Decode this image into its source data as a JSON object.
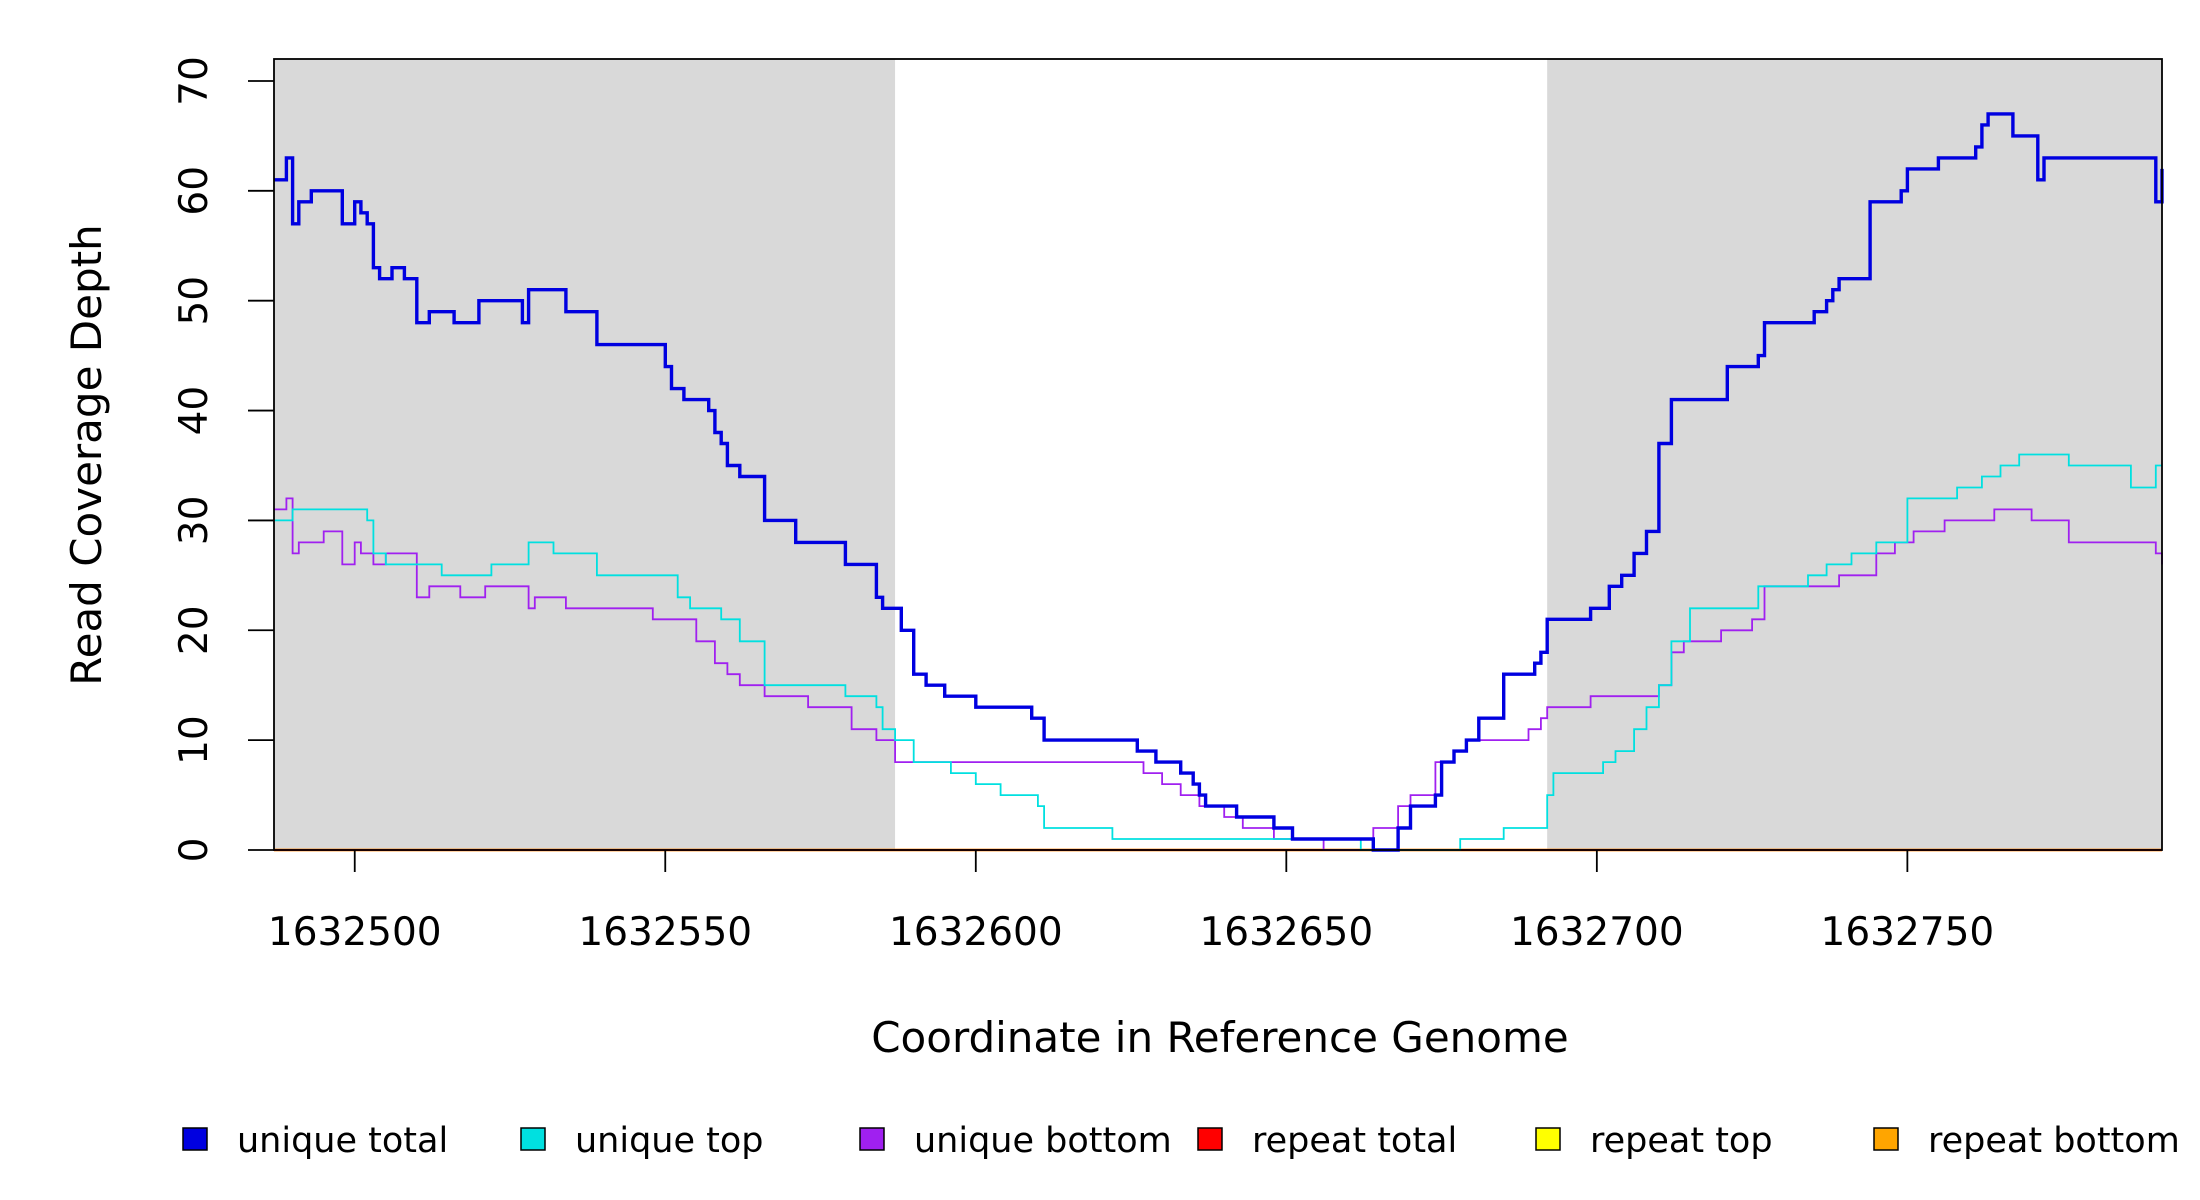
{
  "chart_data": {
    "type": "line",
    "xlabel": "Coordinate in Reference Genome",
    "ylabel": "Read Coverage Depth",
    "xlim": [
      1632487,
      1632791
    ],
    "ylim": [
      0,
      72
    ],
    "x_ticks": [
      1632500,
      1632550,
      1632600,
      1632650,
      1632700,
      1632750
    ],
    "y_ticks": [
      0,
      10,
      20,
      30,
      40,
      50,
      60,
      70
    ],
    "x_tick_labels": [
      "1632500",
      "1632550",
      "1632600",
      "1632650",
      "1632700",
      "1632750"
    ],
    "y_tick_labels": [
      "0",
      "10",
      "20",
      "30",
      "40",
      "50",
      "60",
      "70"
    ],
    "shaded_regions": [
      {
        "x0": 1632487,
        "x1": 1632587,
        "color": "#d9d9d9"
      },
      {
        "x0": 1632692,
        "x1": 1632791,
        "color": "#d9d9d9"
      }
    ],
    "legend_position": "bottom",
    "series": [
      {
        "name": "unique total",
        "color": "#0000e0",
        "x": [
          1632487,
          1632489,
          1632490,
          1632491,
          1632493,
          1632495,
          1632498,
          1632500,
          1632501,
          1632502,
          1632503,
          1632504,
          1632506,
          1632508,
          1632510,
          1632512,
          1632514,
          1632516,
          1632520,
          1632527,
          1632528,
          1632534,
          1632539,
          1632548,
          1632550,
          1632551,
          1632553,
          1632557,
          1632558,
          1632559,
          1632560,
          1632562,
          1632566,
          1632571,
          1632579,
          1632584,
          1632585,
          1632588,
          1632590,
          1632592,
          1632595,
          1632600,
          1632607,
          1632609,
          1632611,
          1632626,
          1632629,
          1632633,
          1632635,
          1632636,
          1632637,
          1632642,
          1632648,
          1632651,
          1632660,
          1632664,
          1632668,
          1632670,
          1632674,
          1632675,
          1632677,
          1632679,
          1632681,
          1632682,
          1632685,
          1632690,
          1632691,
          1632692,
          1632699,
          1632702,
          1632704,
          1632706,
          1632708,
          1632710,
          1632711,
          1632712,
          1632714,
          1632721,
          1632726,
          1632727,
          1632733,
          1632735,
          1632737,
          1632738,
          1632739,
          1632744,
          1632749,
          1632750,
          1632755,
          1632761,
          1632762,
          1632763,
          1632764,
          1632767,
          1632771,
          1632772,
          1632786,
          1632790,
          1632791
        ],
        "y": [
          61,
          63,
          57,
          59,
          60,
          60,
          57,
          59,
          58,
          57,
          53,
          52,
          53,
          52,
          48,
          49,
          49,
          48,
          50,
          48,
          51,
          49,
          46,
          46,
          44,
          42,
          41,
          40,
          38,
          37,
          35,
          34,
          30,
          28,
          26,
          23,
          22,
          20,
          16,
          15,
          14,
          13,
          13,
          12,
          10,
          9,
          8,
          7,
          6,
          5,
          4,
          3,
          2,
          1,
          1,
          0,
          2,
          4,
          5,
          8,
          9,
          10,
          12,
          12,
          16,
          17,
          18,
          21,
          22,
          24,
          25,
          27,
          29,
          37,
          37,
          41,
          41,
          44,
          45,
          48,
          48,
          49,
          50,
          51,
          52,
          59,
          60,
          62,
          63,
          64,
          66,
          67,
          67,
          65,
          61,
          63,
          63,
          59,
          62
        ],
        "width": 3.4
      },
      {
        "name": "unique top",
        "color": "#00e0e0",
        "x": [
          1632487,
          1632490,
          1632491,
          1632494,
          1632500,
          1632502,
          1632503,
          1632505,
          1632512,
          1632514,
          1632515,
          1632522,
          1632527,
          1632528,
          1632532,
          1632539,
          1632550,
          1632552,
          1632554,
          1632558,
          1632559,
          1632562,
          1632566,
          1632579,
          1632584,
          1632585,
          1632587,
          1632590,
          1632596,
          1632600,
          1632604,
          1632608,
          1632610,
          1632611,
          1632622,
          1632631,
          1632636,
          1632643,
          1632648,
          1632657,
          1632661,
          1632662,
          1632675,
          1632677,
          1632678,
          1632685,
          1632690,
          1632692,
          1632693,
          1632698,
          1632701,
          1632703,
          1632706,
          1632708,
          1632710,
          1632712,
          1632715,
          1632721,
          1632726,
          1632730,
          1632734,
          1632737,
          1632741,
          1632745,
          1632750,
          1632752,
          1632758,
          1632762,
          1632765,
          1632768,
          1632772,
          1632776,
          1632781,
          1632786,
          1632788,
          1632790,
          1632791
        ],
        "y": [
          30,
          31,
          31,
          31,
          31,
          30,
          27,
          26,
          26,
          25,
          25,
          26,
          26,
          28,
          27,
          25,
          25,
          23,
          22,
          22,
          21,
          19,
          15,
          14,
          13,
          11,
          10,
          8,
          7,
          6,
          5,
          5,
          4,
          2,
          1,
          1,
          1,
          1,
          1,
          1,
          1,
          0,
          0,
          0,
          1,
          2,
          2,
          5,
          7,
          7,
          8,
          9,
          11,
          13,
          15,
          19,
          22,
          22,
          24,
          24,
          25,
          26,
          27,
          28,
          32,
          32,
          33,
          34,
          35,
          36,
          36,
          35,
          35,
          33,
          33,
          35,
          35
        ],
        "width": 1.8
      },
      {
        "name": "unique bottom",
        "color": "#a020f0",
        "x": [
          1632487,
          1632489,
          1632490,
          1632491,
          1632493,
          1632495,
          1632498,
          1632500,
          1632501,
          1632503,
          1632505,
          1632508,
          1632510,
          1632512,
          1632515,
          1632517,
          1632521,
          1632527,
          1632528,
          1632529,
          1632534,
          1632548,
          1632555,
          1632558,
          1632560,
          1632562,
          1632566,
          1632573,
          1632580,
          1632584,
          1632587,
          1632590,
          1632597,
          1632608,
          1632620,
          1632627,
          1632628,
          1632630,
          1632633,
          1632636,
          1632640,
          1632643,
          1632648,
          1632652,
          1632656,
          1632661,
          1632664,
          1632668,
          1632670,
          1632674,
          1632675,
          1632677,
          1632679,
          1632681,
          1632683,
          1632686,
          1632689,
          1632691,
          1632692,
          1632699,
          1632703,
          1632708,
          1632710,
          1632712,
          1632714,
          1632720,
          1632725,
          1632727,
          1632729,
          1632735,
          1632739,
          1632743,
          1632745,
          1632748,
          1632751,
          1632756,
          1632760,
          1632762,
          1632764,
          1632770,
          1632776,
          1632781,
          1632788,
          1632790,
          1632791
        ],
        "y": [
          31,
          32,
          27,
          28,
          28,
          29,
          26,
          28,
          27,
          26,
          27,
          27,
          23,
          24,
          24,
          23,
          24,
          24,
          22,
          23,
          22,
          21,
          19,
          17,
          16,
          15,
          14,
          13,
          11,
          10,
          8,
          8,
          8,
          8,
          8,
          7,
          7,
          6,
          5,
          4,
          3,
          2,
          1,
          1,
          0,
          0,
          2,
          4,
          5,
          8,
          8,
          9,
          10,
          10,
          10,
          10,
          11,
          12,
          13,
          14,
          14,
          14,
          15,
          18,
          19,
          20,
          21,
          24,
          24,
          24,
          25,
          25,
          27,
          28,
          29,
          30,
          30,
          30,
          31,
          30,
          28,
          28,
          28,
          27,
          26
        ],
        "width": 1.8
      },
      {
        "name": "repeat total",
        "color": "#ff0000",
        "x": [
          1632487,
          1632791
        ],
        "y": [
          0,
          0
        ],
        "width": 2.2
      },
      {
        "name": "repeat top",
        "color": "#ffff00",
        "x": [
          1632487,
          1632791
        ],
        "y": [
          0,
          0
        ],
        "width": 2.2
      },
      {
        "name": "repeat bottom",
        "color": "#ffa500",
        "x": [
          1632487,
          1632791
        ],
        "y": [
          0,
          0
        ],
        "width": 2.6
      }
    ]
  }
}
